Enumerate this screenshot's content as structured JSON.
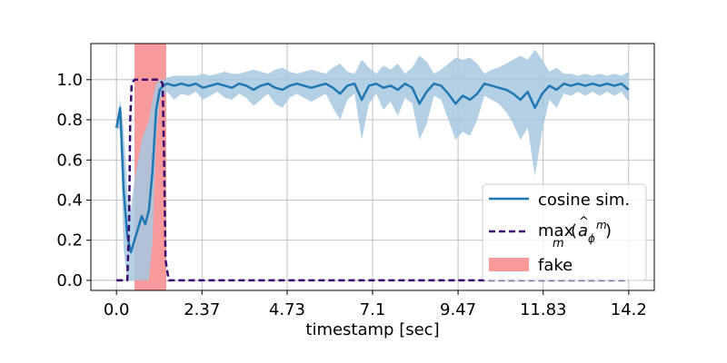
{
  "chart_data": {
    "type": "line",
    "xlabel": "timestamp [sec]",
    "ylabel": "",
    "xlim": [
      -0.71,
      14.91
    ],
    "ylim": [
      -0.05,
      1.18
    ],
    "x_ticks": [
      0.0,
      2.37,
      4.73,
      7.1,
      9.47,
      11.83,
      14.2
    ],
    "x_tick_labels": [
      "0.0",
      "2.37",
      "4.73",
      "7.1",
      "9.47",
      "11.83",
      "14.2"
    ],
    "y_ticks": [
      0.0,
      0.2,
      0.4,
      0.6,
      0.8,
      1.0
    ],
    "y_tick_labels": [
      "0.0",
      "0.2",
      "0.4",
      "0.6",
      "0.8",
      "1.0"
    ],
    "grid": true,
    "legend_position": "bottom-right",
    "fake_region": {
      "x_start": 0.5,
      "x_end": 1.38,
      "label": "fake",
      "color": "#f8999b"
    },
    "series": [
      {
        "name": "cosine sim.",
        "style": "solid",
        "color": "#1f77b4",
        "band_color": "#a6c8e0",
        "x": [
          0.0,
          0.1,
          0.2,
          0.3,
          0.4,
          0.5,
          0.6,
          0.7,
          0.8,
          0.9,
          1.0,
          1.1,
          1.2,
          1.3,
          1.4,
          1.6,
          1.8,
          2.0,
          2.2,
          2.4,
          2.6,
          2.8,
          3.0,
          3.2,
          3.4,
          3.6,
          3.8,
          4.0,
          4.2,
          4.4,
          4.6,
          4.8,
          5.0,
          5.2,
          5.4,
          5.6,
          5.8,
          6.0,
          6.2,
          6.4,
          6.6,
          6.8,
          7.0,
          7.2,
          7.4,
          7.6,
          7.8,
          8.0,
          8.2,
          8.4,
          8.6,
          8.8,
          9.0,
          9.2,
          9.4,
          9.6,
          9.8,
          10.0,
          10.2,
          10.4,
          10.6,
          10.8,
          11.0,
          11.2,
          11.4,
          11.6,
          11.8,
          12.0,
          12.2,
          12.4,
          12.6,
          12.8,
          13.0,
          13.2,
          13.4,
          13.6,
          13.8,
          14.0,
          14.2
        ],
        "y": [
          0.76,
          0.86,
          0.45,
          0.22,
          0.14,
          0.2,
          0.26,
          0.32,
          0.28,
          0.35,
          0.55,
          0.85,
          0.95,
          0.97,
          0.98,
          0.97,
          0.98,
          0.97,
          0.98,
          0.96,
          0.97,
          0.98,
          0.97,
          0.96,
          0.98,
          0.97,
          0.95,
          0.97,
          0.98,
          0.96,
          0.95,
          0.97,
          0.98,
          0.97,
          0.96,
          0.97,
          0.98,
          0.96,
          0.93,
          0.97,
          0.98,
          0.9,
          0.97,
          0.98,
          0.96,
          0.97,
          0.95,
          0.98,
          0.96,
          0.88,
          0.94,
          0.98,
          0.97,
          0.93,
          0.88,
          0.92,
          0.9,
          0.93,
          0.98,
          0.97,
          0.96,
          0.95,
          0.93,
          0.9,
          0.94,
          0.86,
          0.93,
          0.97,
          0.95,
          0.98,
          0.97,
          0.98,
          0.97,
          0.98,
          0.97,
          0.98,
          0.97,
          0.98,
          0.95
        ],
        "lower": [
          0.76,
          0.75,
          0.15,
          0.0,
          0.0,
          0.0,
          0.0,
          0.0,
          0.0,
          0.0,
          0.2,
          0.7,
          0.9,
          0.92,
          0.94,
          0.9,
          0.93,
          0.92,
          0.94,
          0.9,
          0.92,
          0.94,
          0.91,
          0.9,
          0.93,
          0.91,
          0.87,
          0.9,
          0.93,
          0.88,
          0.86,
          0.91,
          0.93,
          0.91,
          0.89,
          0.91,
          0.93,
          0.86,
          0.8,
          0.9,
          0.93,
          0.7,
          0.88,
          0.93,
          0.85,
          0.89,
          0.82,
          0.91,
          0.88,
          0.7,
          0.78,
          0.92,
          0.9,
          0.8,
          0.7,
          0.74,
          0.72,
          0.8,
          0.92,
          0.9,
          0.88,
          0.84,
          0.78,
          0.7,
          0.76,
          0.52,
          0.74,
          0.9,
          0.86,
          0.93,
          0.92,
          0.94,
          0.92,
          0.94,
          0.92,
          0.94,
          0.92,
          0.94,
          0.89
        ],
        "upper": [
          0.76,
          0.9,
          0.75,
          0.45,
          0.35,
          0.5,
          0.6,
          0.7,
          0.75,
          0.8,
          0.9,
          0.98,
          1.0,
          1.0,
          1.01,
          1.02,
          1.02,
          1.02,
          1.02,
          1.03,
          1.02,
          1.03,
          1.04,
          1.03,
          1.03,
          1.04,
          1.05,
          1.04,
          1.03,
          1.05,
          1.06,
          1.04,
          1.03,
          1.04,
          1.05,
          1.04,
          1.03,
          1.06,
          1.08,
          1.04,
          1.03,
          1.1,
          1.06,
          1.03,
          1.07,
          1.05,
          1.08,
          1.03,
          1.06,
          1.12,
          1.09,
          1.03,
          1.05,
          1.08,
          1.11,
          1.1,
          1.11,
          1.08,
          1.03,
          1.05,
          1.06,
          1.08,
          1.1,
          1.12,
          1.1,
          1.15,
          1.1,
          1.04,
          1.06,
          1.03,
          1.03,
          1.02,
          1.03,
          1.02,
          1.03,
          1.02,
          1.03,
          1.02,
          1.04
        ]
      },
      {
        "name": "max_m(â_φ^m)",
        "legend_label": {
          "pre": "max",
          "sub": "m",
          "open": "(",
          "hat": "a",
          "hat_sub": "ϕ",
          "hat_sup": "m",
          "close": " )"
        },
        "style": "dashed",
        "color": "#3b0a70",
        "x": [
          0.0,
          0.3,
          0.35,
          0.38,
          0.42,
          0.5,
          1.2,
          1.28,
          1.32,
          1.36,
          1.45,
          14.2
        ],
        "y": [
          0.0,
          0.0,
          0.3,
          0.8,
          0.98,
          1.0,
          1.0,
          0.98,
          0.6,
          0.1,
          0.0,
          0.0
        ]
      }
    ]
  }
}
